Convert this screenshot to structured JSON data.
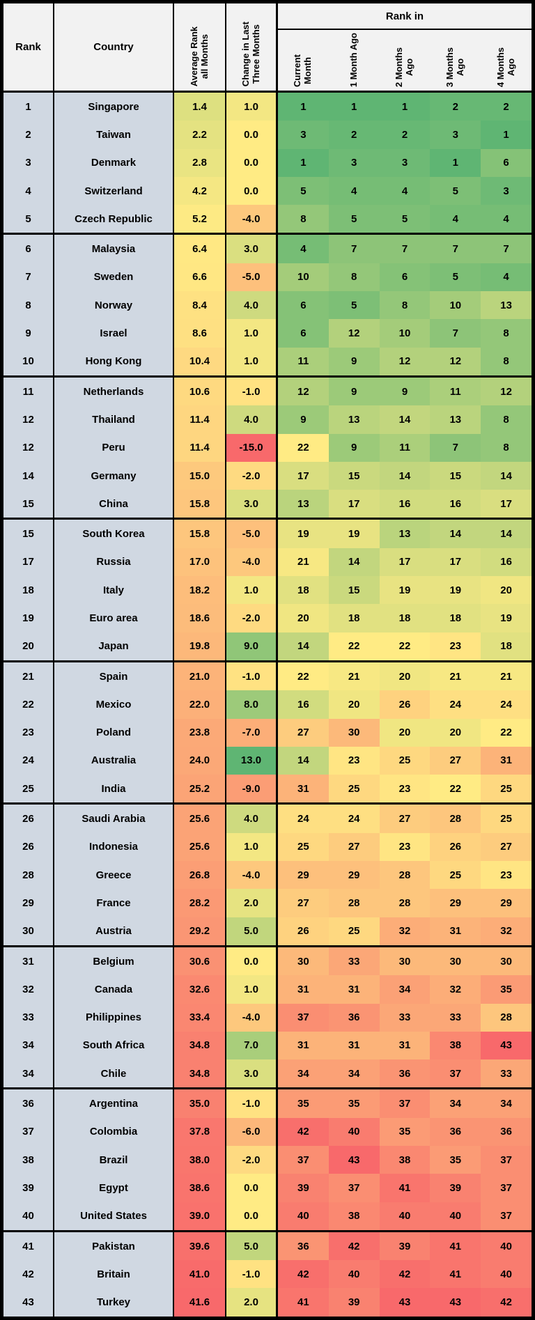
{
  "header": {
    "rank_label": "Rank",
    "country_label": "Country",
    "avg_label": "Average Rank\nall Months",
    "change_label": "Change in Last\nThree Months",
    "rank_in_label": "Rank in",
    "month_labels": [
      "Current\nMonth",
      "1 Month Ago",
      "2 Months\nAgo",
      "3 Months\nAgo",
      "4 Months\nAgo"
    ]
  },
  "colors": {
    "heatmap_green": "#5fb573",
    "heatmap_yellow": "#ffeb84",
    "heatmap_red": "#f8696b",
    "row_header_bg": "#d0d8e2",
    "column_header_bg": "#f2f2f2",
    "border": "#000000",
    "text": "#000000"
  },
  "scales": {
    "rank": {
      "green_at": 1,
      "yellow_at": 22,
      "red_at": 43
    },
    "average": {
      "green_at": -14,
      "yellow_at": 5.5,
      "red_at": 41.6
    },
    "change": {
      "green_at": 13,
      "yellow_at": 0,
      "red_at": -15
    }
  },
  "chart_data": {
    "type": "heatmap",
    "title": "Rank in",
    "columns": [
      "Rank",
      "Country",
      "Average Rank all Months",
      "Change in Last Three Months",
      "Current Month",
      "1 Month Ago",
      "2 Months Ago",
      "3 Months Ago",
      "4 Months Ago"
    ],
    "group_size": 5,
    "rows": [
      {
        "rank": "1",
        "country": "Singapore",
        "average": "1.4",
        "change": "1.0",
        "ranks": [
          1,
          1,
          1,
          2,
          2
        ]
      },
      {
        "rank": "2",
        "country": "Taiwan",
        "average": "2.2",
        "change": "0.0",
        "ranks": [
          3,
          2,
          2,
          3,
          1
        ]
      },
      {
        "rank": "3",
        "country": "Denmark",
        "average": "2.8",
        "change": "0.0",
        "ranks": [
          1,
          3,
          3,
          1,
          6
        ]
      },
      {
        "rank": "4",
        "country": "Switzerland",
        "average": "4.2",
        "change": "0.0",
        "ranks": [
          5,
          4,
          4,
          5,
          3
        ]
      },
      {
        "rank": "5",
        "country": "Czech Republic",
        "average": "5.2",
        "change": "-4.0",
        "ranks": [
          8,
          5,
          5,
          4,
          4
        ]
      },
      {
        "rank": "6",
        "country": "Malaysia",
        "average": "6.4",
        "change": "3.0",
        "ranks": [
          4,
          7,
          7,
          7,
          7
        ]
      },
      {
        "rank": "7",
        "country": "Sweden",
        "average": "6.6",
        "change": "-5.0",
        "ranks": [
          10,
          8,
          6,
          5,
          4
        ]
      },
      {
        "rank": "8",
        "country": "Norway",
        "average": "8.4",
        "change": "4.0",
        "ranks": [
          6,
          5,
          8,
          10,
          13
        ]
      },
      {
        "rank": "9",
        "country": "Israel",
        "average": "8.6",
        "change": "1.0",
        "ranks": [
          6,
          12,
          10,
          7,
          8
        ]
      },
      {
        "rank": "10",
        "country": "Hong Kong",
        "average": "10.4",
        "change": "1.0",
        "ranks": [
          11,
          9,
          12,
          12,
          8
        ]
      },
      {
        "rank": "11",
        "country": "Netherlands",
        "average": "10.6",
        "change": "-1.0",
        "ranks": [
          12,
          9,
          9,
          11,
          12
        ]
      },
      {
        "rank": "12",
        "country": "Thailand",
        "average": "11.4",
        "change": "4.0",
        "ranks": [
          9,
          13,
          14,
          13,
          8
        ]
      },
      {
        "rank": "12",
        "country": "Peru",
        "average": "11.4",
        "change": "-15.0",
        "ranks": [
          22,
          9,
          11,
          7,
          8
        ]
      },
      {
        "rank": "14",
        "country": "Germany",
        "average": "15.0",
        "change": "-2.0",
        "ranks": [
          17,
          15,
          14,
          15,
          14
        ]
      },
      {
        "rank": "15",
        "country": "China",
        "average": "15.8",
        "change": "3.0",
        "ranks": [
          13,
          17,
          16,
          16,
          17
        ]
      },
      {
        "rank": "15",
        "country": "South Korea",
        "average": "15.8",
        "change": "-5.0",
        "ranks": [
          19,
          19,
          13,
          14,
          14
        ]
      },
      {
        "rank": "17",
        "country": "Russia",
        "average": "17.0",
        "change": "-4.0",
        "ranks": [
          21,
          14,
          17,
          17,
          16
        ]
      },
      {
        "rank": "18",
        "country": "Italy",
        "average": "18.2",
        "change": "1.0",
        "ranks": [
          18,
          15,
          19,
          19,
          20
        ]
      },
      {
        "rank": "19",
        "country": "Euro area",
        "average": "18.6",
        "change": "-2.0",
        "ranks": [
          20,
          18,
          18,
          18,
          19
        ]
      },
      {
        "rank": "20",
        "country": "Japan",
        "average": "19.8",
        "change": "9.0",
        "ranks": [
          14,
          22,
          22,
          23,
          18
        ]
      },
      {
        "rank": "21",
        "country": "Spain",
        "average": "21.0",
        "change": "-1.0",
        "ranks": [
          22,
          21,
          20,
          21,
          21
        ]
      },
      {
        "rank": "22",
        "country": "Mexico",
        "average": "22.0",
        "change": "8.0",
        "ranks": [
          16,
          20,
          26,
          24,
          24
        ]
      },
      {
        "rank": "23",
        "country": "Poland",
        "average": "23.8",
        "change": "-7.0",
        "ranks": [
          27,
          30,
          20,
          20,
          22
        ]
      },
      {
        "rank": "24",
        "country": "Australia",
        "average": "24.0",
        "change": "13.0",
        "ranks": [
          14,
          23,
          25,
          27,
          31
        ]
      },
      {
        "rank": "25",
        "country": "India",
        "average": "25.2",
        "change": "-9.0",
        "ranks": [
          31,
          25,
          23,
          22,
          25
        ]
      },
      {
        "rank": "26",
        "country": "Saudi Arabia",
        "average": "25.6",
        "change": "4.0",
        "ranks": [
          24,
          24,
          27,
          28,
          25
        ]
      },
      {
        "rank": "26",
        "country": "Indonesia",
        "average": "25.6",
        "change": "1.0",
        "ranks": [
          25,
          27,
          23,
          26,
          27
        ]
      },
      {
        "rank": "28",
        "country": "Greece",
        "average": "26.8",
        "change": "-4.0",
        "ranks": [
          29,
          29,
          28,
          25,
          23
        ]
      },
      {
        "rank": "29",
        "country": "France",
        "average": "28.2",
        "change": "2.0",
        "ranks": [
          27,
          28,
          28,
          29,
          29
        ]
      },
      {
        "rank": "30",
        "country": "Austria",
        "average": "29.2",
        "change": "5.0",
        "ranks": [
          26,
          25,
          32,
          31,
          32
        ]
      },
      {
        "rank": "31",
        "country": "Belgium",
        "average": "30.6",
        "change": "0.0",
        "ranks": [
          30,
          33,
          30,
          30,
          30
        ]
      },
      {
        "rank": "32",
        "country": "Canada",
        "average": "32.6",
        "change": "1.0",
        "ranks": [
          31,
          31,
          34,
          32,
          35
        ]
      },
      {
        "rank": "33",
        "country": "Philippines",
        "average": "33.4",
        "change": "-4.0",
        "ranks": [
          37,
          36,
          33,
          33,
          28
        ]
      },
      {
        "rank": "34",
        "country": "South Africa",
        "average": "34.8",
        "change": "7.0",
        "ranks": [
          31,
          31,
          31,
          38,
          43
        ]
      },
      {
        "rank": "34",
        "country": "Chile",
        "average": "34.8",
        "change": "3.0",
        "ranks": [
          34,
          34,
          36,
          37,
          33
        ]
      },
      {
        "rank": "36",
        "country": "Argentina",
        "average": "35.0",
        "change": "-1.0",
        "ranks": [
          35,
          35,
          37,
          34,
          34
        ]
      },
      {
        "rank": "37",
        "country": "Colombia",
        "average": "37.8",
        "change": "-6.0",
        "ranks": [
          42,
          40,
          35,
          36,
          36
        ]
      },
      {
        "rank": "38",
        "country": "Brazil",
        "average": "38.0",
        "change": "-2.0",
        "ranks": [
          37,
          43,
          38,
          35,
          37
        ]
      },
      {
        "rank": "39",
        "country": "Egypt",
        "average": "38.6",
        "change": "0.0",
        "ranks": [
          39,
          37,
          41,
          39,
          37
        ]
      },
      {
        "rank": "40",
        "country": "United States",
        "average": "39.0",
        "change": "0.0",
        "ranks": [
          40,
          38,
          40,
          40,
          37
        ]
      },
      {
        "rank": "41",
        "country": "Pakistan",
        "average": "39.6",
        "change": "5.0",
        "ranks": [
          36,
          42,
          39,
          41,
          40
        ]
      },
      {
        "rank": "42",
        "country": "Britain",
        "average": "41.0",
        "change": "-1.0",
        "ranks": [
          42,
          40,
          42,
          41,
          40
        ]
      },
      {
        "rank": "43",
        "country": "Turkey",
        "average": "41.6",
        "change": "2.0",
        "ranks": [
          41,
          39,
          43,
          43,
          42
        ]
      }
    ]
  }
}
